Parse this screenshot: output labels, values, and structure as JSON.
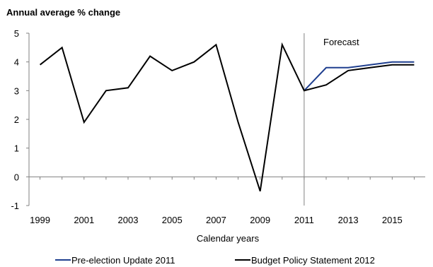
{
  "chart_data": {
    "type": "line",
    "title": "",
    "ylabel": "Annual average % change",
    "xlabel": "Calendar years",
    "ylim": [
      -1,
      5
    ],
    "yticks": [
      "5",
      "4",
      "3",
      "2",
      "1",
      "0",
      "-1"
    ],
    "xlim": [
      1998.5,
      2016.5
    ],
    "xticks": [
      "1999",
      "2001",
      "2003",
      "2005",
      "2007",
      "2009",
      "2011",
      "2013",
      "2015"
    ],
    "annotation": "Forecast",
    "forecast_divider_x": 2011,
    "grid": false,
    "legend_position": "bottom",
    "series": [
      {
        "name": "Pre-election Update 2011",
        "color": "#1f3f8f",
        "x": [
          2011,
          2012,
          2013,
          2014,
          2015,
          2016
        ],
        "values": [
          3.0,
          3.8,
          3.8,
          3.9,
          4.0,
          4.0
        ]
      },
      {
        "name": "Budget Policy Statement 2012",
        "color": "#000000",
        "x": [
          1999,
          2000,
          2001,
          2002,
          2003,
          2004,
          2005,
          2006,
          2007,
          2008,
          2009,
          2010,
          2011,
          2012,
          2013,
          2014,
          2015,
          2016
        ],
        "values": [
          3.9,
          4.5,
          1.9,
          3.0,
          3.1,
          4.2,
          3.7,
          4.0,
          4.6,
          1.9,
          -0.5,
          4.6,
          3.0,
          3.2,
          3.7,
          3.8,
          3.9,
          3.9
        ]
      }
    ]
  }
}
